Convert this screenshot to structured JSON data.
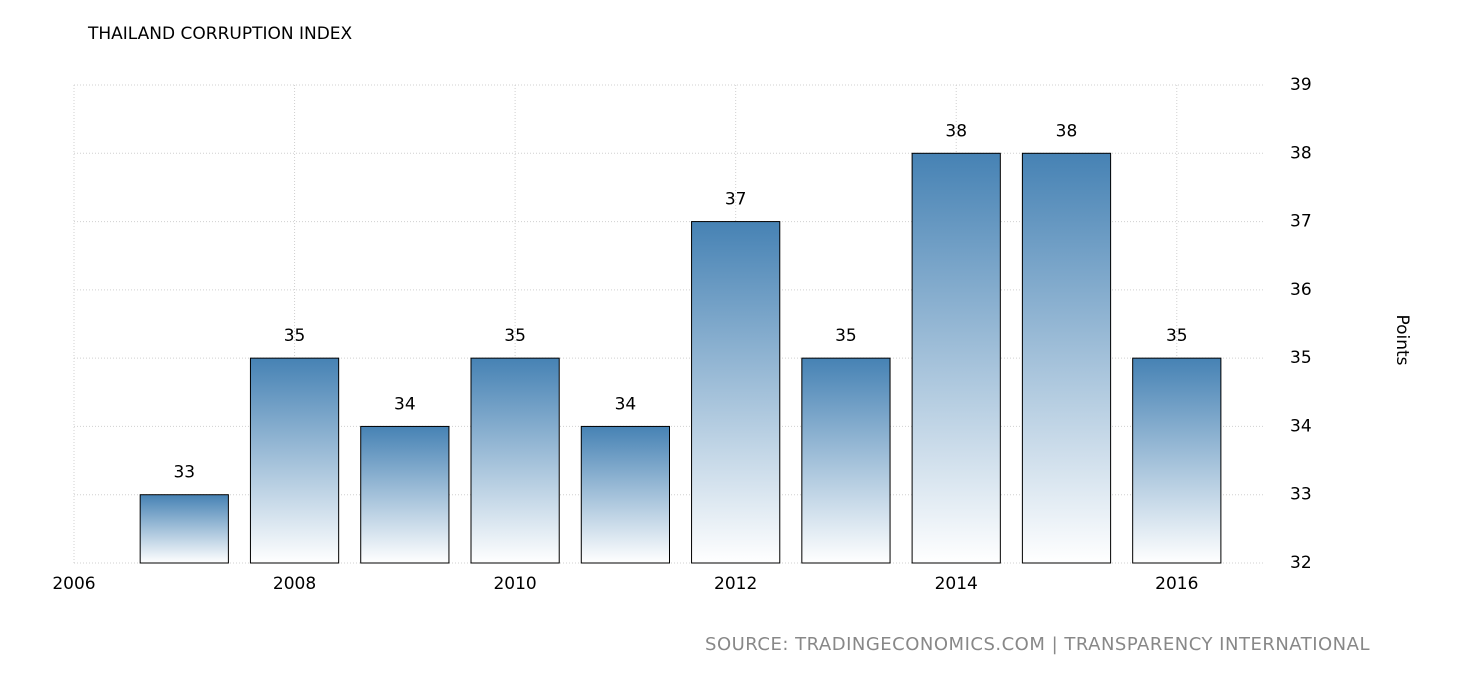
{
  "chart_data": {
    "type": "bar",
    "title": "THAILAND CORRUPTION INDEX",
    "x": [
      2007,
      2008,
      2009,
      2010,
      2011,
      2012,
      2013,
      2014,
      2015,
      2016
    ],
    "values": [
      33,
      35,
      34,
      35,
      34,
      37,
      35,
      38,
      38,
      35
    ],
    "color": "#4682b4",
    "xlim": [
      2006,
      2016.8
    ],
    "xticks": [
      2006,
      2008,
      2010,
      2012,
      2014,
      2016
    ],
    "ylim": [
      32,
      39
    ],
    "yticks": [
      32,
      33,
      34,
      35,
      36,
      37,
      38,
      39
    ],
    "y_label": "Points",
    "grid": true,
    "source": "SOURCE: TRADINGECONOMICS.COM | TRANSPARENCY INTERNATIONAL"
  }
}
